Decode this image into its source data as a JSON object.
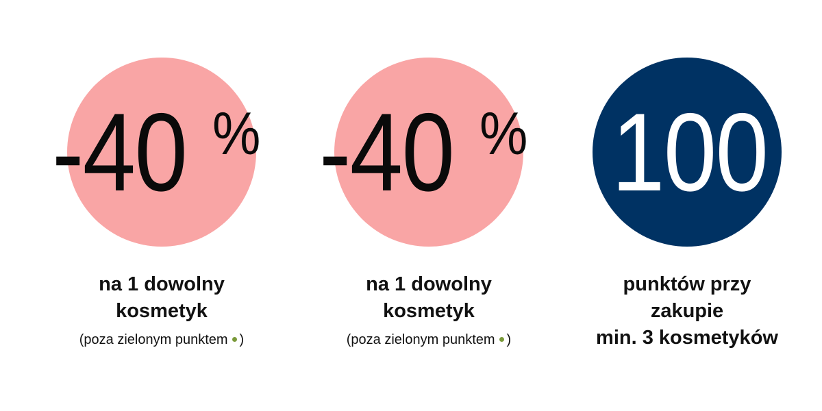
{
  "items": [
    {
      "big": "-40",
      "sup": "%",
      "lines": [
        "na 1 dowolny",
        "kosmetyk"
      ],
      "note": "(poza zielonym punktem",
      "note_end": ")"
    },
    {
      "big": "-40",
      "sup": "%",
      "lines": [
        "na 1 dowolny",
        "kosmetyk"
      ],
      "note": "(poza zielonym punktem",
      "note_end": ")"
    },
    {
      "big": "100",
      "lines": [
        "punktów przy",
        "zakupie",
        "min. 3 kosmetyków"
      ]
    }
  ]
}
